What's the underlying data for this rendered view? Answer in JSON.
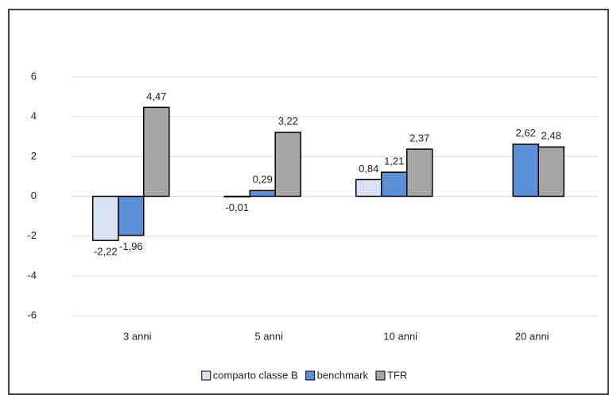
{
  "chart_data": {
    "type": "bar",
    "categories": [
      "3 anni",
      "5 anni",
      "10 anni",
      "20 anni"
    ],
    "series": [
      {
        "name": "comparto classe B",
        "color": "#dae3f3",
        "values": [
          -2.22,
          -0.01,
          0.84,
          null
        ],
        "value_labels": [
          "-2,22",
          "-0,01",
          "0,84",
          null
        ]
      },
      {
        "name": "benchmark",
        "color": "#5b8fd6",
        "values": [
          -1.96,
          0.29,
          1.21,
          2.62
        ],
        "value_labels": [
          "-1,96",
          "0,29",
          "1,21",
          "2,62"
        ]
      },
      {
        "name": "TFR",
        "color": "#a6a6a6",
        "values": [
          4.47,
          3.22,
          2.37,
          2.48
        ],
        "value_labels": [
          "4,47",
          "3,22",
          "2,37",
          "2,48"
        ]
      }
    ],
    "ylim": [
      -6,
      6
    ],
    "yticks": [
      -6,
      -4,
      -2,
      0,
      2,
      4,
      6
    ],
    "grid": true,
    "legend": "bottom"
  }
}
